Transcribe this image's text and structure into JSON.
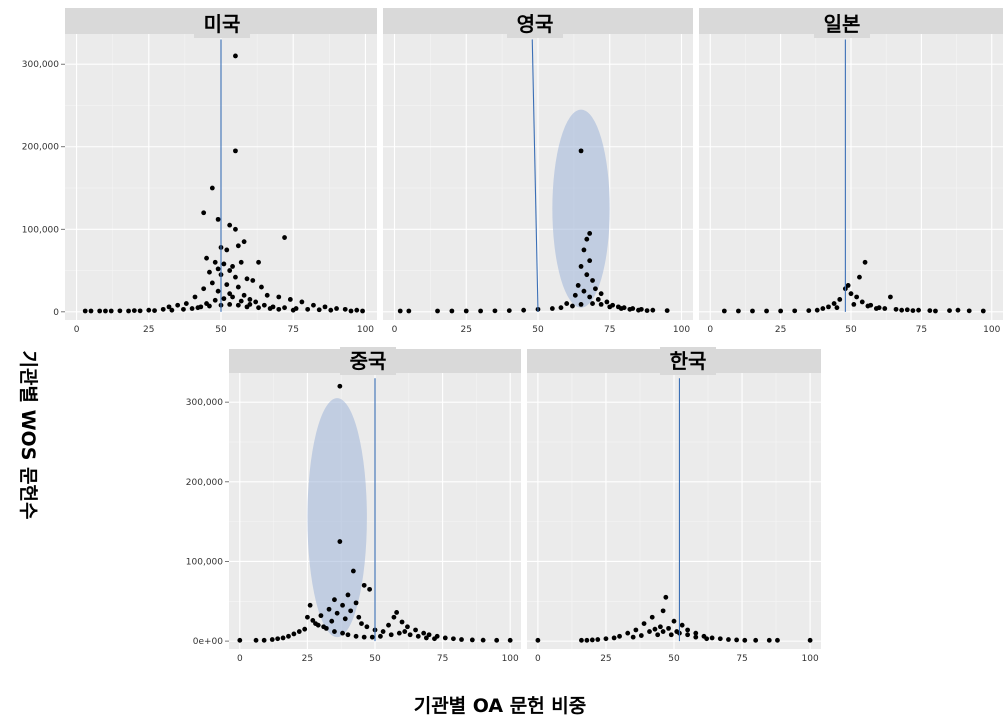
{
  "chart_data": {
    "type": "scatter",
    "xlabel": "기관별 OA 문헌 비중",
    "ylabel": "기관별 WOS 문헌수",
    "xlim": [
      0,
      100
    ],
    "ylim": [
      0,
      330000
    ],
    "x_ticks": [
      0,
      25,
      50,
      75,
      100
    ],
    "grid": true,
    "panels": [
      {
        "title": "미국",
        "y_ticks": [
          {
            "value": 0,
            "label": "0"
          },
          {
            "value": 100000,
            "label": "100,000"
          },
          {
            "value": 200000,
            "label": "200,000"
          },
          {
            "value": 300000,
            "label": "300,000"
          }
        ],
        "x_tick_labels": [
          "0",
          "25",
          "50",
          "75",
          "100"
        ],
        "vline": [
          [
            50,
            0
          ],
          [
            50,
            330000
          ]
        ],
        "ellipse": null,
        "points": [
          [
            55,
            310000
          ],
          [
            55,
            195000
          ],
          [
            47,
            150000
          ],
          [
            72,
            90000
          ],
          [
            44,
            120000
          ],
          [
            49,
            112000
          ],
          [
            53,
            105000
          ],
          [
            55,
            100000
          ],
          [
            58,
            85000
          ],
          [
            56,
            80000
          ],
          [
            50,
            78000
          ],
          [
            52,
            75000
          ],
          [
            45,
            65000
          ],
          [
            48,
            60000
          ],
          [
            51,
            58000
          ],
          [
            54,
            55000
          ],
          [
            57,
            60000
          ],
          [
            63,
            60000
          ],
          [
            49,
            52000
          ],
          [
            53,
            50000
          ],
          [
            46,
            48000
          ],
          [
            50,
            45000
          ],
          [
            55,
            42000
          ],
          [
            59,
            40000
          ],
          [
            61,
            38000
          ],
          [
            47,
            35000
          ],
          [
            52,
            33000
          ],
          [
            56,
            30000
          ],
          [
            44,
            28000
          ],
          [
            64,
            30000
          ],
          [
            49,
            25000
          ],
          [
            53,
            22000
          ],
          [
            58,
            20000
          ],
          [
            41,
            18000
          ],
          [
            66,
            20000
          ],
          [
            70,
            18000
          ],
          [
            74,
            15000
          ],
          [
            78,
            12000
          ],
          [
            38,
            10000
          ],
          [
            35,
            8000
          ],
          [
            32,
            6000
          ],
          [
            82,
            8000
          ],
          [
            86,
            6000
          ],
          [
            90,
            4000
          ],
          [
            93,
            3000
          ],
          [
            97,
            2000
          ],
          [
            5,
            1000
          ],
          [
            10,
            1000
          ],
          [
            15,
            1200
          ],
          [
            20,
            1500
          ],
          [
            25,
            2000
          ],
          [
            30,
            3000
          ],
          [
            60,
            15000
          ],
          [
            62,
            12000
          ],
          [
            48,
            14000
          ],
          [
            45,
            10000
          ],
          [
            43,
            6000
          ],
          [
            51,
            16000
          ],
          [
            54,
            18000
          ],
          [
            57,
            13000
          ],
          [
            60,
            9000
          ],
          [
            65,
            8000
          ],
          [
            68,
            6000
          ],
          [
            72,
            5000
          ],
          [
            76,
            4000
          ],
          [
            80,
            3000
          ],
          [
            84,
            2500
          ],
          [
            88,
            2000
          ],
          [
            3,
            1000
          ],
          [
            8,
            1000
          ],
          [
            12,
            1000
          ],
          [
            18,
            1000
          ],
          [
            22,
            1200
          ],
          [
            27,
            1500
          ],
          [
            33,
            2000
          ],
          [
            37,
            3000
          ],
          [
            40,
            4000
          ],
          [
            42,
            5000
          ],
          [
            46,
            7000
          ],
          [
            50,
            8000
          ],
          [
            53,
            9000
          ],
          [
            56,
            8000
          ],
          [
            59,
            6000
          ],
          [
            63,
            5000
          ],
          [
            67,
            4000
          ],
          [
            70,
            3000
          ],
          [
            75,
            2000
          ],
          [
            95,
            1000
          ],
          [
            99,
            1000
          ]
        ]
      },
      {
        "title": "영국",
        "y_ticks": [],
        "x_tick_labels": [
          "0",
          "25",
          "50",
          "75",
          "100"
        ],
        "vline": [
          [
            48,
            330000
          ],
          [
            50,
            0
          ]
        ],
        "ellipse": {
          "cx": 65,
          "cy": 125000,
          "rx": 10,
          "ry": 120000
        },
        "points": [
          [
            65,
            195000
          ],
          [
            68,
            95000
          ],
          [
            67,
            88000
          ],
          [
            66,
            75000
          ],
          [
            68,
            62000
          ],
          [
            65,
            55000
          ],
          [
            67,
            45000
          ],
          [
            69,
            38000
          ],
          [
            64,
            32000
          ],
          [
            70,
            28000
          ],
          [
            66,
            25000
          ],
          [
            72,
            22000
          ],
          [
            63,
            20000
          ],
          [
            68,
            18000
          ],
          [
            71,
            15000
          ],
          [
            74,
            12000
          ],
          [
            60,
            10000
          ],
          [
            76,
            8000
          ],
          [
            78,
            6000
          ],
          [
            80,
            5000
          ],
          [
            83,
            4000
          ],
          [
            86,
            3000
          ],
          [
            90,
            2000
          ],
          [
            95,
            1500
          ],
          [
            2,
            1000
          ],
          [
            5,
            1000
          ],
          [
            15,
            1000
          ],
          [
            20,
            1000
          ],
          [
            25,
            1000
          ],
          [
            30,
            1000
          ],
          [
            35,
            1200
          ],
          [
            40,
            1500
          ],
          [
            45,
            2000
          ],
          [
            50,
            3000
          ],
          [
            55,
            4000
          ],
          [
            58,
            5000
          ],
          [
            62,
            7000
          ],
          [
            65,
            9000
          ],
          [
            69,
            10000
          ],
          [
            72,
            9000
          ],
          [
            75,
            6000
          ],
          [
            79,
            4000
          ],
          [
            82,
            3000
          ],
          [
            85,
            2000
          ],
          [
            88,
            1500
          ]
        ]
      },
      {
        "title": "일본",
        "y_ticks": [],
        "x_tick_labels": [
          "0",
          "25",
          "50",
          "75",
          "100"
        ],
        "vline": [
          [
            48,
            0
          ],
          [
            48,
            330000
          ]
        ],
        "ellipse": null,
        "points": [
          [
            55,
            60000
          ],
          [
            53,
            42000
          ],
          [
            49,
            32000
          ],
          [
            48,
            28000
          ],
          [
            50,
            22000
          ],
          [
            52,
            18000
          ],
          [
            46,
            15000
          ],
          [
            54,
            12000
          ],
          [
            64,
            18000
          ],
          [
            44,
            10000
          ],
          [
            57,
            8000
          ],
          [
            42,
            6000
          ],
          [
            60,
            5000
          ],
          [
            62,
            4000
          ],
          [
            40,
            4000
          ],
          [
            66,
            3000
          ],
          [
            70,
            2500
          ],
          [
            74,
            2000
          ],
          [
            78,
            1500
          ],
          [
            85,
            1500
          ],
          [
            88,
            2000
          ],
          [
            92,
            1200
          ],
          [
            97,
            1000
          ],
          [
            5,
            1000
          ],
          [
            10,
            1000
          ],
          [
            15,
            1000
          ],
          [
            20,
            1000
          ],
          [
            25,
            1000
          ],
          [
            30,
            1200
          ],
          [
            35,
            1500
          ],
          [
            38,
            2000
          ],
          [
            45,
            5000
          ],
          [
            51,
            9000
          ],
          [
            56,
            7000
          ],
          [
            59,
            4000
          ],
          [
            68,
            2000
          ],
          [
            72,
            1500
          ],
          [
            80,
            1000
          ]
        ]
      },
      {
        "title": "중국",
        "y_ticks": [
          {
            "value": 0,
            "label": "0e+00"
          },
          {
            "value": 100000,
            "label": "100,000"
          },
          {
            "value": 200000,
            "label": "200,000"
          },
          {
            "value": 300000,
            "label": "300,000"
          }
        ],
        "x_tick_labels": [
          "0",
          "25",
          "50",
          "75",
          "100"
        ],
        "vline": [
          [
            50,
            0
          ],
          [
            50,
            330000
          ]
        ],
        "ellipse": {
          "cx": 36,
          "cy": 155000,
          "rx": 11,
          "ry": 150000
        },
        "points": [
          [
            37,
            320000
          ],
          [
            37,
            125000
          ],
          [
            42,
            88000
          ],
          [
            46,
            70000
          ],
          [
            48,
            65000
          ],
          [
            40,
            58000
          ],
          [
            35,
            52000
          ],
          [
            43,
            48000
          ],
          [
            38,
            45000
          ],
          [
            26,
            45000
          ],
          [
            33,
            40000
          ],
          [
            41,
            38000
          ],
          [
            36,
            35000
          ],
          [
            30,
            32000
          ],
          [
            44,
            30000
          ],
          [
            58,
            36000
          ],
          [
            57,
            30000
          ],
          [
            39,
            28000
          ],
          [
            34,
            25000
          ],
          [
            28,
            22000
          ],
          [
            45,
            22000
          ],
          [
            60,
            24000
          ],
          [
            55,
            20000
          ],
          [
            31,
            18000
          ],
          [
            47,
            18000
          ],
          [
            62,
            18000
          ],
          [
            24,
            15000
          ],
          [
            50,
            14000
          ],
          [
            65,
            14000
          ],
          [
            22,
            12000
          ],
          [
            53,
            12000
          ],
          [
            68,
            10000
          ],
          [
            20,
            9000
          ],
          [
            70,
            8000
          ],
          [
            18,
            6000
          ],
          [
            73,
            6000
          ],
          [
            16,
            4000
          ],
          [
            76,
            4000
          ],
          [
            14,
            3000
          ],
          [
            79,
            3000
          ],
          [
            12,
            2000
          ],
          [
            82,
            2000
          ],
          [
            86,
            1500
          ],
          [
            90,
            1200
          ],
          [
            95,
            1000
          ],
          [
            100,
            1000
          ],
          [
            0,
            1000
          ],
          [
            6,
            1000
          ],
          [
            9,
            1000
          ],
          [
            25,
            30000
          ],
          [
            27,
            26000
          ],
          [
            29,
            20000
          ],
          [
            32,
            16000
          ],
          [
            35,
            12000
          ],
          [
            38,
            10000
          ],
          [
            40,
            8000
          ],
          [
            43,
            6000
          ],
          [
            46,
            5000
          ],
          [
            49,
            5000
          ],
          [
            52,
            6000
          ],
          [
            56,
            8000
          ],
          [
            59,
            10000
          ],
          [
            61,
            12000
          ],
          [
            63,
            8000
          ],
          [
            66,
            6000
          ],
          [
            69,
            4000
          ],
          [
            72,
            3000
          ]
        ]
      },
      {
        "title": "한국",
        "y_ticks": [],
        "x_tick_labels": [
          "0",
          "25",
          "50",
          "75",
          "100"
        ],
        "vline": [
          [
            52,
            0
          ],
          [
            52,
            330000
          ]
        ],
        "ellipse": null,
        "points": [
          [
            47,
            55000
          ],
          [
            46,
            38000
          ],
          [
            42,
            30000
          ],
          [
            50,
            25000
          ],
          [
            39,
            22000
          ],
          [
            53,
            20000
          ],
          [
            45,
            18000
          ],
          [
            48,
            16000
          ],
          [
            36,
            14000
          ],
          [
            55,
            14000
          ],
          [
            41,
            12000
          ],
          [
            51,
            12000
          ],
          [
            33,
            10000
          ],
          [
            58,
            10000
          ],
          [
            44,
            8000
          ],
          [
            49,
            8000
          ],
          [
            30,
            6000
          ],
          [
            61,
            6000
          ],
          [
            28,
            4000
          ],
          [
            64,
            4000
          ],
          [
            25,
            3000
          ],
          [
            67,
            3000
          ],
          [
            22,
            2000
          ],
          [
            70,
            2000
          ],
          [
            20,
            1500
          ],
          [
            73,
            1500
          ],
          [
            18,
            1000
          ],
          [
            76,
            1000
          ],
          [
            80,
            1000
          ],
          [
            85,
            1000
          ],
          [
            88,
            1000
          ],
          [
            100,
            1000
          ],
          [
            0,
            1000
          ],
          [
            16,
            1000
          ],
          [
            43,
            15000
          ],
          [
            46,
            12000
          ],
          [
            52,
            10000
          ],
          [
            55,
            8000
          ],
          [
            38,
            7000
          ],
          [
            35,
            5000
          ],
          [
            58,
            5000
          ],
          [
            62,
            3000
          ]
        ]
      }
    ]
  }
}
